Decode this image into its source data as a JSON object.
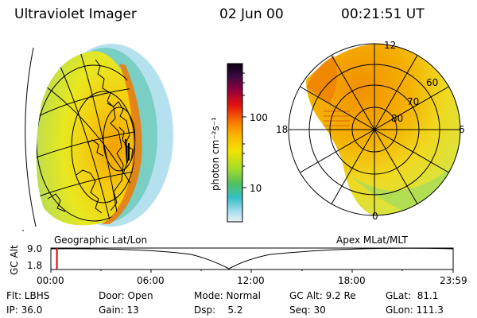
{
  "header": {
    "instrument": "Ultraviolet Imager",
    "date": "02 Jun 00",
    "time": "00:21:51 UT"
  },
  "colorbar": {
    "unit_label": "photon cm⁻²s⁻¹",
    "ticks": [
      "100",
      "10"
    ],
    "colors": [
      "#0a0010",
      "#2a0a3a",
      "#6a0060",
      "#a00020",
      "#d81010",
      "#f04a00",
      "#f88a00",
      "#fbb800",
      "#f6e000",
      "#d6ea10",
      "#9ad830",
      "#5cc050",
      "#30b8a8",
      "#48c8e0",
      "#a0dcec",
      "#e8f0f4"
    ]
  },
  "maps": {
    "left_label": "Geographic Lat/Lon",
    "right_label": "Apex MLat/MLT",
    "polar_lat_labels": [
      "60",
      "70",
      "80"
    ],
    "polar_mlt_labels": [
      "12",
      "18",
      "6",
      "0"
    ]
  },
  "altitude_plot": {
    "axis_label": "GC Alt",
    "y_ticks": [
      "9.0",
      "1.8"
    ],
    "x_ticks": [
      "00:00",
      "06:00",
      "12:00",
      "18:00",
      "23:59"
    ],
    "curve_color": "#000000",
    "marker_color": "#e00000",
    "marker_fraction": 0.015
  },
  "footer": {
    "flt": "Flt: LBHS",
    "ip": "IP: 36.0",
    "door": "Door: Open",
    "gain": "Gain: 13",
    "mode": "Mode: Normal",
    "dsp": "Dsp:    5.2",
    "gcalt": "GC Alt: 9.2 Re",
    "seq": "Seq: 30",
    "glat": "GLat:  81.1",
    "glon": "GLon: 111.3"
  }
}
